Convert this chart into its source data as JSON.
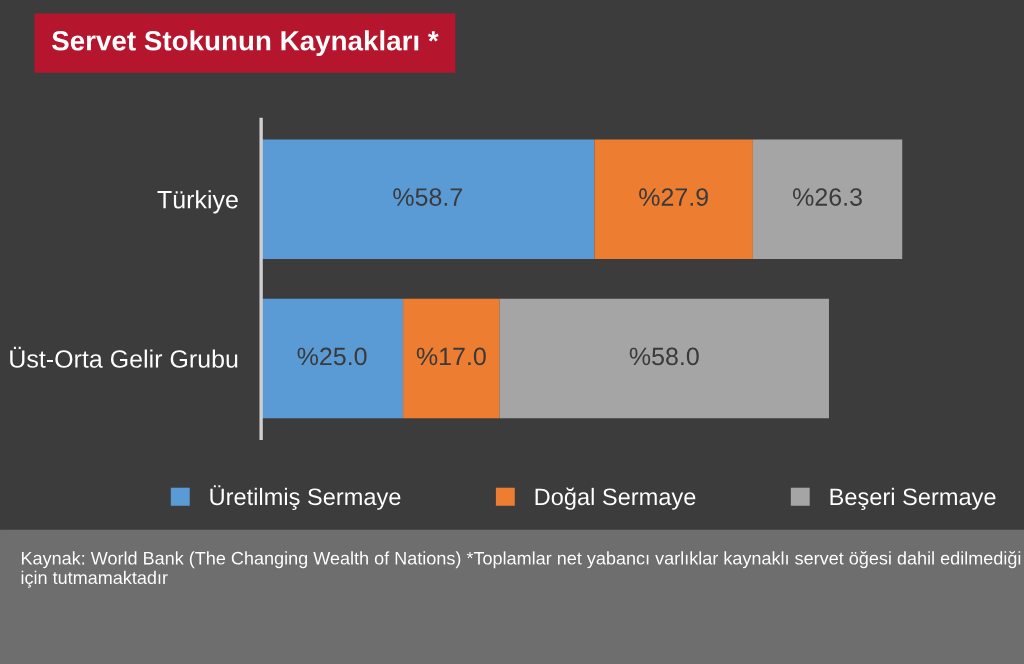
{
  "chart_data": {
    "type": "bar",
    "orientation": "horizontal",
    "stacked": true,
    "title": "Servet Stokunun Kaynakları *",
    "categories": [
      "Türkiye",
      "Üst-Orta Gelir Grubu"
    ],
    "series": [
      {
        "name": "Üretilmiş Sermaye",
        "color": "#5b9bd5",
        "values": [
          58.7,
          25.0
        ],
        "value_labels": [
          "%58.7",
          "%25.0"
        ]
      },
      {
        "name": "Doğal Sermaye",
        "color": "#ed7d31",
        "values": [
          27.9,
          17.0
        ],
        "value_labels": [
          "%27.9",
          "%17.0"
        ]
      },
      {
        "name": "Beşeri Sermaye",
        "color": "#a5a5a5",
        "values": [
          26.3,
          58.0
        ],
        "value_labels": [
          "%26.3",
          "%58.0"
        ]
      }
    ],
    "legend": "bottom",
    "grid": false,
    "annotations": [
      "Kaynak: World Bank (The Changing Wealth of Nations) *Toplamlar net yabancı varlıklar kaynaklı servet öğesi dahil edilmediği için tutmamaktadır"
    ]
  }
}
